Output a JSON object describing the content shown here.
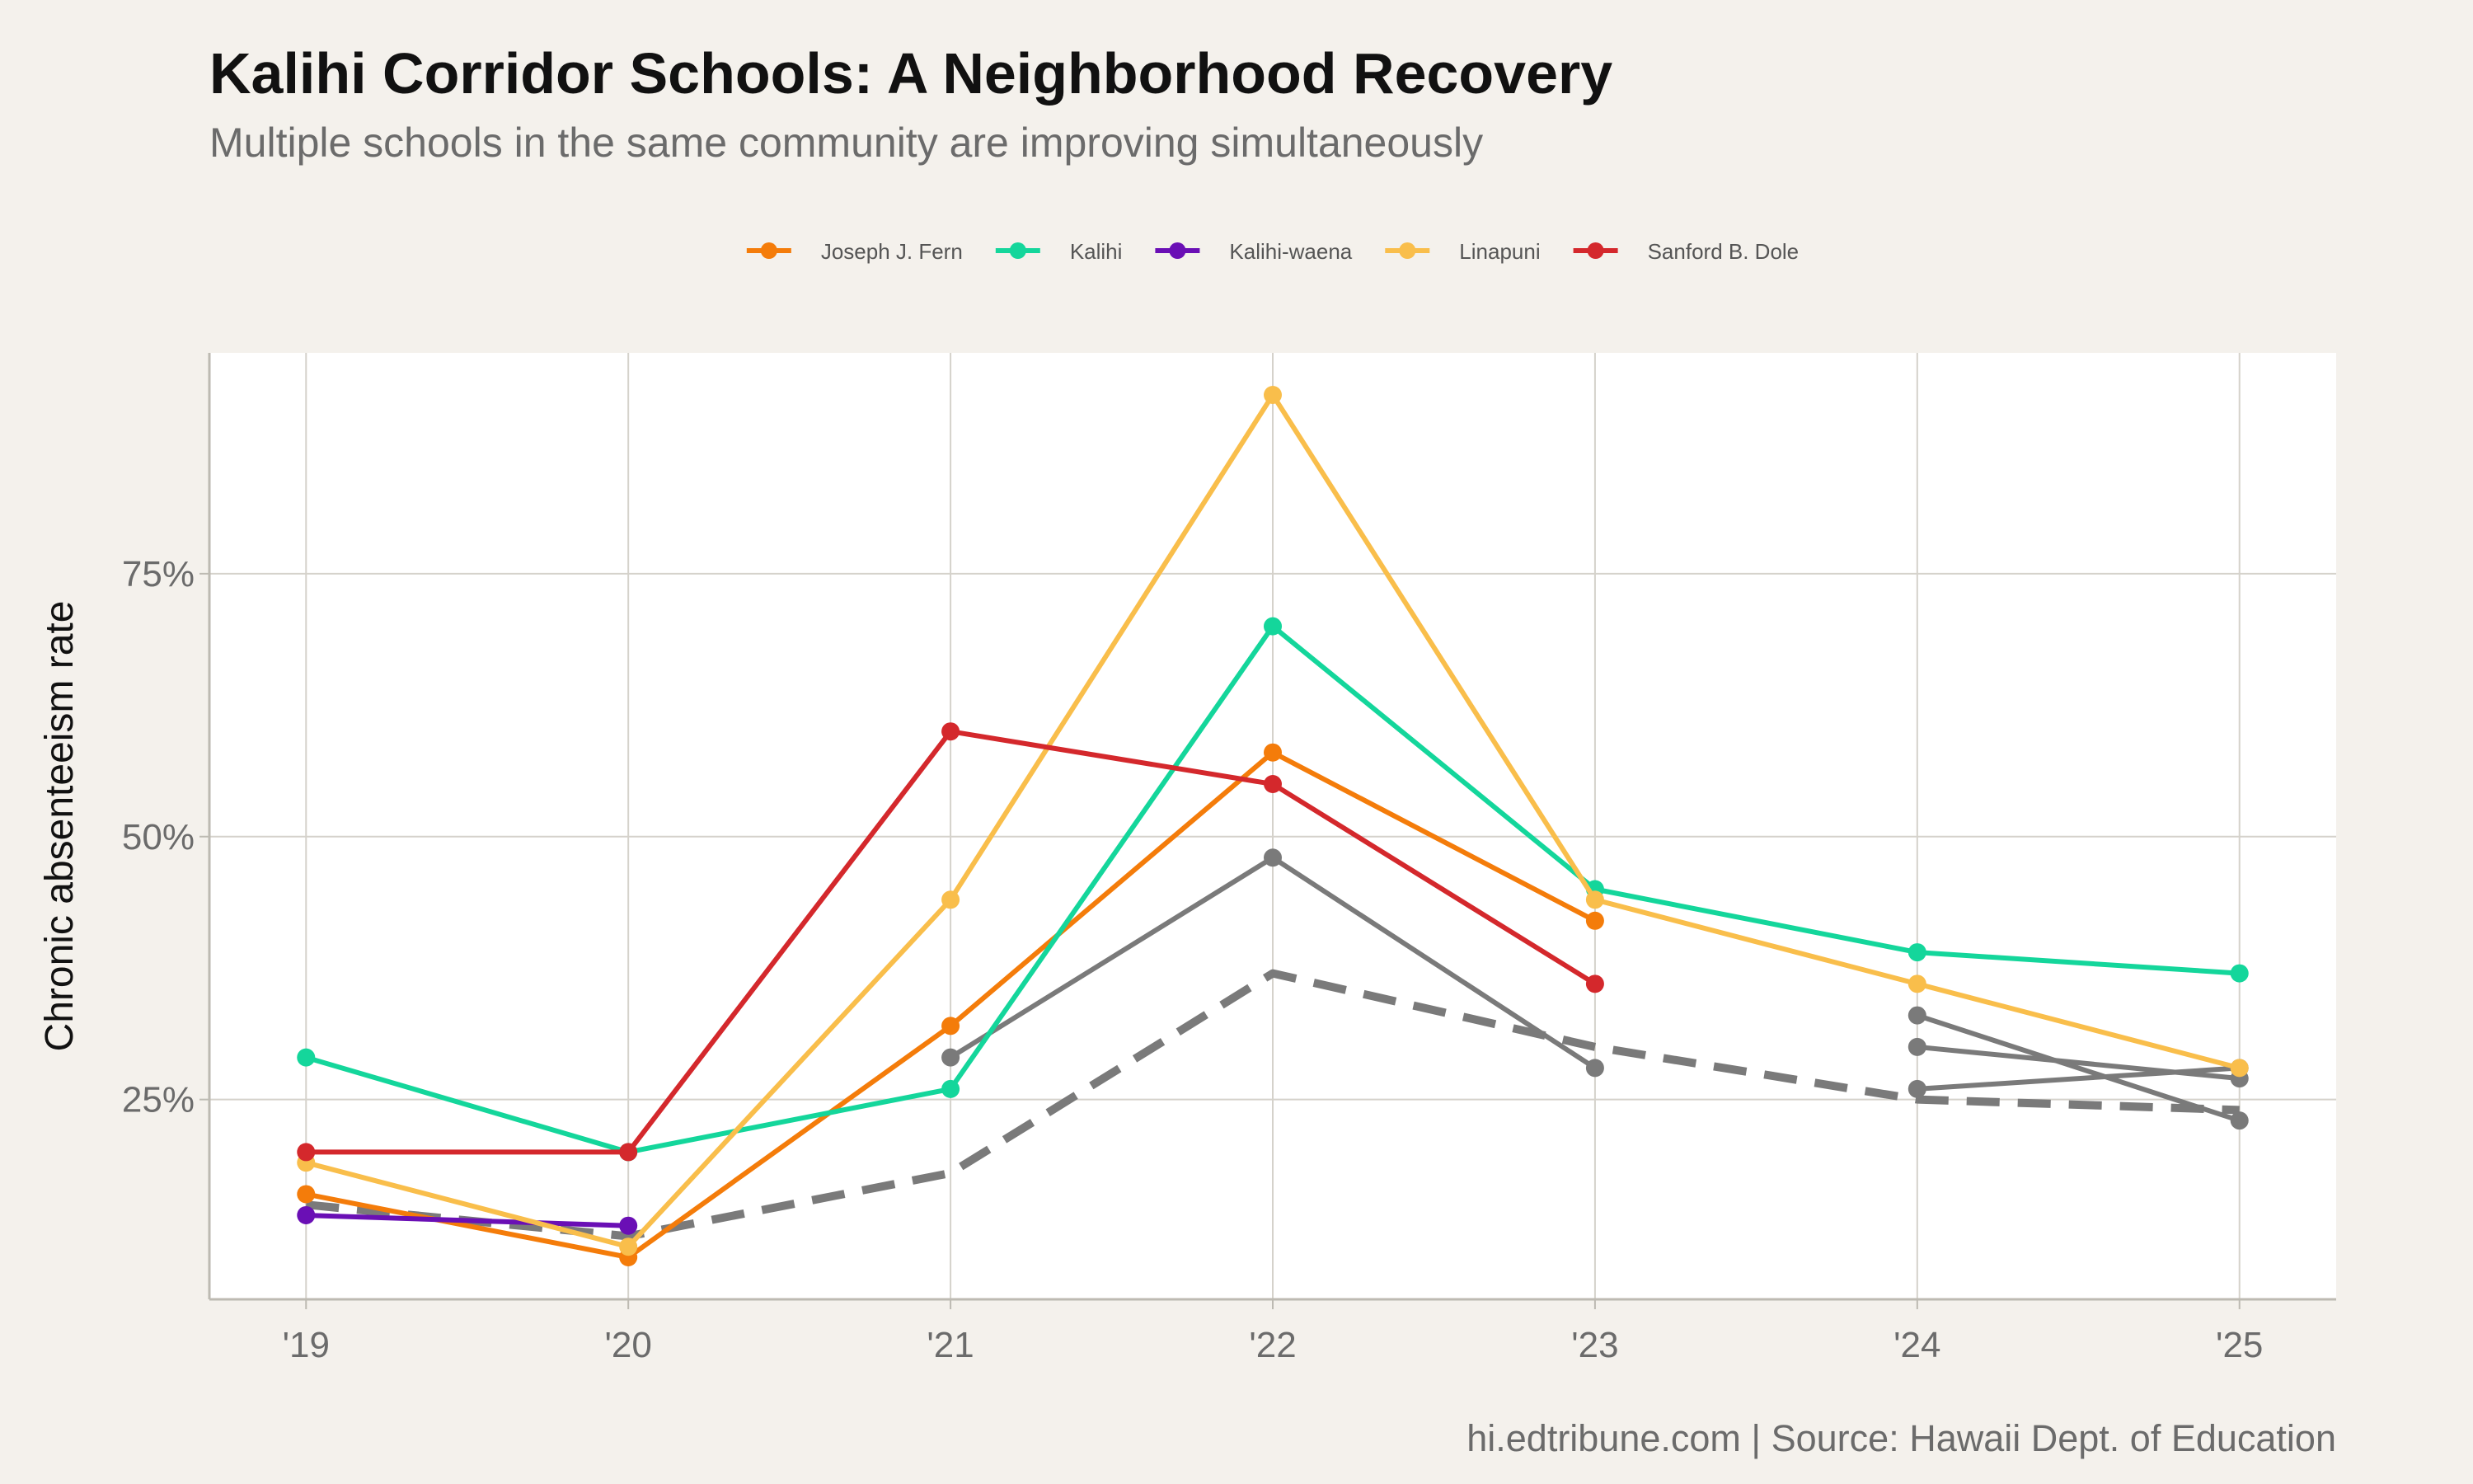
{
  "title": "Kalihi Corridor Schools: A Neighborhood Recovery",
  "subtitle": "Multiple schools in the same community are improving simultaneously",
  "caption": "hi.edtribune.com | Source: Hawaii Dept. of Education",
  "chart_data": {
    "type": "line",
    "ylabel": "Chronic absenteeism rate",
    "xlabel": "",
    "x": [
      2019,
      2020,
      2021,
      2022,
      2023,
      2024,
      2025
    ],
    "x_tick_labels": [
      "'19",
      "'20",
      "'21",
      "'22",
      "'23",
      "'24",
      "'25"
    ],
    "y_ticks": [
      25,
      50,
      75
    ],
    "y_tick_labels": [
      "25%",
      "50%",
      "75%"
    ],
    "xlim": [
      2018.7,
      2025.3
    ],
    "ylim": [
      6,
      96
    ],
    "grid": true,
    "legend_position": "top",
    "series": [
      {
        "name": "Joseph J. Fern",
        "color": "#f47c0a",
        "dashed": false,
        "markers": true,
        "points": [
          [
            2019,
            16
          ],
          [
            2020,
            10
          ],
          [
            2021,
            32
          ],
          [
            2022,
            58
          ],
          [
            2023,
            42
          ]
        ]
      },
      {
        "name": "Kalihi",
        "color": "#14d69b",
        "dashed": false,
        "markers": true,
        "points": [
          [
            2019,
            29
          ],
          [
            2020,
            20
          ],
          [
            2021,
            26
          ],
          [
            2022,
            70
          ],
          [
            2023,
            45
          ],
          [
            2024,
            39
          ],
          [
            2025,
            37
          ]
        ]
      },
      {
        "name": "Kalihi-waena",
        "color": "#6a0fb5",
        "dashed": false,
        "markers": true,
        "points": [
          [
            2019,
            14
          ],
          [
            2020,
            13
          ]
        ]
      },
      {
        "name": "Linapuni",
        "color": "#f9be4b",
        "dashed": false,
        "markers": true,
        "points": [
          [
            2019,
            19
          ],
          [
            2020,
            11
          ],
          [
            2021,
            44
          ],
          [
            2022,
            92
          ],
          [
            2023,
            44
          ],
          [
            2024,
            36
          ],
          [
            2025,
            28
          ]
        ]
      },
      {
        "name": "Sanford B. Dole",
        "color": "#d4282c",
        "dashed": false,
        "markers": true,
        "points": [
          [
            2019,
            20
          ],
          [
            2020,
            20
          ],
          [
            2021,
            60
          ],
          [
            2022,
            55
          ],
          [
            2023,
            36
          ]
        ]
      },
      {
        "color": "#7a7a7a",
        "dashed": false,
        "markers": true,
        "points": [
          [
            2021,
            29
          ],
          [
            2022,
            48
          ],
          [
            2023,
            28
          ]
        ]
      },
      {
        "color": "#7a7a7a",
        "dashed": false,
        "markers": true,
        "points": [
          [
            2024,
            33
          ],
          [
            2025,
            23
          ]
        ]
      },
      {
        "color": "#7a7a7a",
        "dashed": false,
        "markers": true,
        "points": [
          [
            2024,
            30
          ],
          [
            2025,
            27
          ]
        ]
      },
      {
        "color": "#7a7a7a",
        "dashed": false,
        "markers": true,
        "points": [
          [
            2024,
            26
          ],
          [
            2025,
            28
          ]
        ]
      },
      {
        "color": "#7a7a7a",
        "dashed": true,
        "markers": false,
        "points": [
          [
            2019,
            15
          ],
          [
            2020,
            12
          ],
          [
            2021,
            18
          ],
          [
            2022,
            37
          ],
          [
            2023,
            30
          ],
          [
            2024,
            25
          ],
          [
            2025,
            24
          ]
        ]
      }
    ]
  }
}
